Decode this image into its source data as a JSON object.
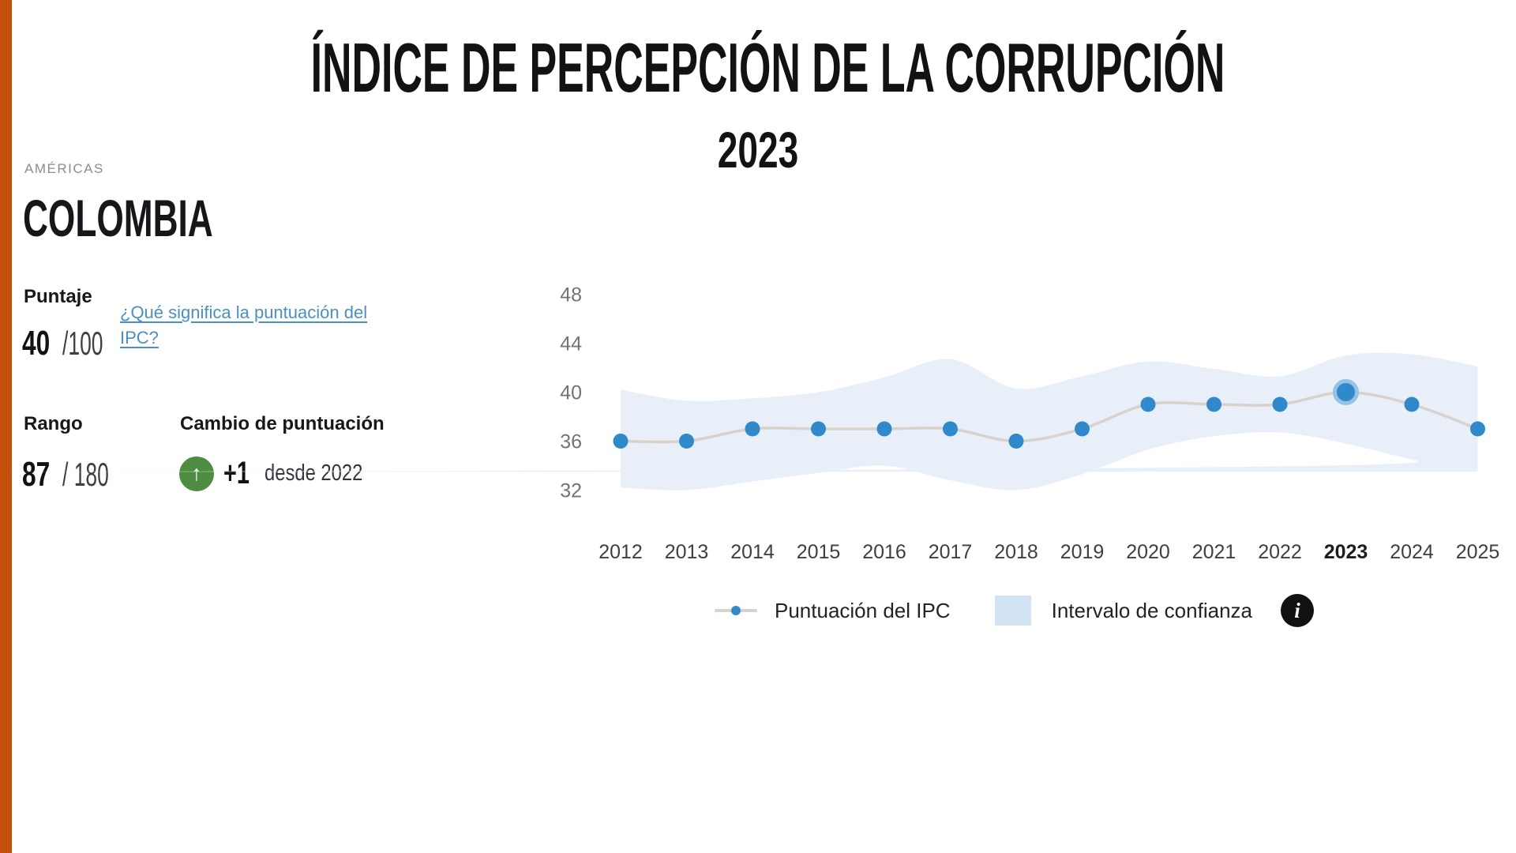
{
  "header": {
    "title": "ÍNDICE DE PERCEPCIÓN DE LA CORRUPCIÓN",
    "year": "2023"
  },
  "country": {
    "region": "AMÉRICAS",
    "name": "COLOMBIA"
  },
  "score": {
    "label": "Puntaje",
    "value": "40",
    "denominator": "/100",
    "link_text": "¿Qué significa la puntuación del IPC?"
  },
  "rank": {
    "label": "Rango",
    "value": "87",
    "denominator": "/ 180"
  },
  "score_change": {
    "label": "Cambio de puntuación",
    "delta": "+1",
    "caption": "desde 2022",
    "direction": "up",
    "arrow_glyph": "↑"
  },
  "legend": {
    "series_label": "Puntuación del IPC",
    "band_label": "Intervalo de confianza",
    "info_glyph": "i"
  },
  "colors": {
    "accent_orange": "#c5500b",
    "dot_blue": "#3089cb",
    "highlight_ring": "#96c2e6",
    "band_blue": "#e9eff8",
    "legend_band_blue": "#d2e3f3",
    "line_gray": "#d7d2cc",
    "link_blue": "#4a90c2",
    "positive_green": "#4e8c42",
    "info_black": "#111111"
  },
  "chart_data": {
    "type": "line",
    "x": [
      2012,
      2013,
      2014,
      2015,
      2016,
      2017,
      2018,
      2019,
      2020,
      2021,
      2022,
      2023,
      2024,
      2025
    ],
    "series": [
      {
        "name": "Puntuación del IPC",
        "values": [
          36,
          36,
          37,
          37,
          37,
          37,
          36,
          37,
          39,
          39,
          39,
          40,
          39,
          37
        ]
      }
    ],
    "confidence_band": {
      "name": "Intervalo de confianza",
      "upper": [
        40.2,
        39.3,
        39.5,
        40.0,
        41.2,
        42.7,
        40.3,
        41.3,
        42.5,
        41.9,
        41.3,
        43.0,
        43.1,
        42.1
      ],
      "lower": [
        32.2,
        32.0,
        32.7,
        33.4,
        34.0,
        32.8,
        32.0,
        33.3,
        35.3,
        36.4,
        36.7,
        35.8,
        34.5,
        33.5
      ]
    },
    "highlight_x": 2023,
    "yticks": [
      32,
      36,
      40,
      44,
      48
    ],
    "ylim": [
      30,
      50
    ],
    "grid": false,
    "legend_position": "bottom",
    "title": "",
    "xlabel": "",
    "ylabel": ""
  }
}
